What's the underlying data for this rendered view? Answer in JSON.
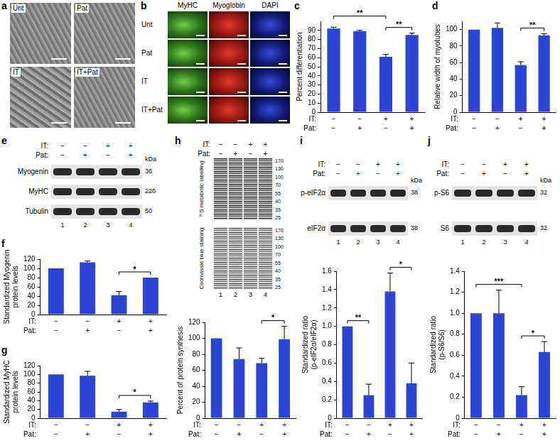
{
  "panel_a": {
    "letter": "a",
    "labels": [
      "Unt",
      "Pat",
      "IT",
      "IT+Pat"
    ]
  },
  "panel_b": {
    "letter": "b",
    "columns": [
      "MyHC",
      "Myoglobin",
      "DAPI"
    ],
    "rows": [
      "Unt",
      "Pat",
      "IT",
      "IT+Pat"
    ]
  },
  "panel_e": {
    "letter": "e",
    "treatments": [
      {
        "name": "IT:",
        "signs": [
          "−",
          "−",
          "+",
          "+"
        ]
      },
      {
        "name": "Pat:",
        "signs": [
          "−",
          "+",
          "−",
          "+"
        ]
      }
    ],
    "unit": "kDa",
    "bands": [
      {
        "name": "Myogenin",
        "kda": 36
      },
      {
        "name": "MyHC",
        "kda": 220
      },
      {
        "name": "Tubulin",
        "kda": 50
      }
    ],
    "lanes": [
      "1",
      "2",
      "3",
      "4"
    ]
  },
  "panel_h": {
    "letter": "h",
    "treatments": [
      {
        "name": "IT:",
        "signs": [
          "−",
          "−",
          "+",
          "+"
        ]
      },
      {
        "name": "Pat:",
        "signs": [
          "−",
          "+",
          "−",
          "+"
        ]
      }
    ],
    "gels": [
      "³⁵S metabolic labelling",
      "Coomassie blue staining"
    ],
    "markers": [
      170,
      130,
      100,
      70,
      55,
      40,
      35,
      25
    ],
    "lanes": [
      "1",
      "2",
      "3",
      "4"
    ]
  },
  "panel_i": {
    "letter": "i",
    "treatments": [
      {
        "name": "IT:",
        "signs": [
          "−",
          "−",
          "+",
          "+"
        ]
      },
      {
        "name": "Pat:",
        "signs": [
          "−",
          "+",
          "−",
          "+"
        ]
      }
    ],
    "unit": "kDa",
    "bands": [
      {
        "name": "p-eIF2α",
        "kda": 38
      },
      {
        "name": "eIF2α",
        "kda": 38
      }
    ],
    "lanes": [
      "1",
      "2",
      "3",
      "4"
    ]
  },
  "panel_j": {
    "letter": "j",
    "treatments": [
      {
        "name": "IT:",
        "signs": [
          "−",
          "−",
          "+",
          "+"
        ]
      },
      {
        "name": "Pat:",
        "signs": [
          "−",
          "+",
          "−",
          "+"
        ]
      }
    ],
    "unit": "kDa",
    "bands": [
      {
        "name": "p-S6",
        "kda": 32
      },
      {
        "name": "S6",
        "kda": 32
      }
    ],
    "lanes": [
      "1",
      "2",
      "3",
      "4"
    ]
  },
  "chart_data": [
    {
      "letter": "c",
      "type": "bar",
      "y_label": "Percent differentiation",
      "condition_labels": [
        "IT:",
        "Pat:"
      ],
      "categories": [
        [
          "−",
          "−"
        ],
        [
          "−",
          "+"
        ],
        [
          "+",
          "−"
        ],
        [
          "+",
          "+"
        ]
      ],
      "values": [
        92,
        89,
        61,
        85
      ],
      "errors": [
        1.5,
        1,
        2.5,
        2
      ],
      "significance": [
        {
          "between": [
            0,
            2
          ],
          "label": "**"
        },
        {
          "between": [
            2,
            3
          ],
          "label": "**"
        }
      ],
      "color": "#2b44d6",
      "ylim": [
        0,
        100
      ],
      "yticks": [
        0,
        10,
        20,
        30,
        40,
        50,
        60,
        70,
        80,
        90
      ],
      "grid": false
    },
    {
      "letter": "d",
      "type": "bar",
      "y_label": "Relative width of myotubes",
      "condition_labels": [
        "IT:",
        "Pat:"
      ],
      "categories": [
        [
          "−",
          "−"
        ],
        [
          "−",
          "+"
        ],
        [
          "+",
          "−"
        ],
        [
          "+",
          "+"
        ]
      ],
      "values": [
        100,
        102,
        57,
        93
      ],
      "errors": [
        0,
        6,
        4,
        2
      ],
      "significance": [
        {
          "between": [
            2,
            3
          ],
          "label": "**"
        }
      ],
      "color": "#2b44d6",
      "ylim": [
        0,
        110
      ],
      "yticks": [
        0,
        20,
        40,
        60,
        80,
        100
      ],
      "grid": false
    },
    {
      "letter": "f",
      "type": "bar",
      "y_label": [
        "Standardized Myogenin",
        "protein levels"
      ],
      "condition_labels": [
        "IT:",
        "Pat:"
      ],
      "categories": [
        [
          "−",
          "−"
        ],
        [
          "−",
          "+"
        ],
        [
          "+",
          "−"
        ],
        [
          "+",
          "+"
        ]
      ],
      "values": [
        100,
        113,
        42,
        80
      ],
      "errors": [
        0,
        3,
        8,
        0
      ],
      "significance": [
        {
          "between": [
            2,
            3
          ],
          "label": "*"
        }
      ],
      "color": "#2b44d6",
      "ylim": [
        0,
        120
      ],
      "yticks": [
        0,
        20,
        40,
        60,
        80,
        100,
        120
      ],
      "grid": false
    },
    {
      "letter": "g",
      "type": "bar",
      "y_label": [
        "Standardized MyHC",
        "protein levels"
      ],
      "condition_labels": [
        "IT:",
        "Pat:"
      ],
      "categories": [
        [
          "−",
          "−"
        ],
        [
          "−",
          "+"
        ],
        [
          "+",
          "−"
        ],
        [
          "+",
          "+"
        ]
      ],
      "values": [
        100,
        97,
        15,
        36
      ],
      "errors": [
        0,
        10,
        5,
        3
      ],
      "significance": [
        {
          "between": [
            2,
            3
          ],
          "label": "*"
        }
      ],
      "color": "#2b44d6",
      "ylim": [
        0,
        120
      ],
      "yticks": [
        0,
        20,
        40,
        60,
        80,
        100,
        120
      ],
      "grid": false
    },
    {
      "type": "bar",
      "y_label": "Percent of protein synthesis",
      "condition_labels": [
        "IT:",
        "Pat:"
      ],
      "categories": [
        [
          "−",
          "−"
        ],
        [
          "−",
          "+"
        ],
        [
          "+",
          "−"
        ],
        [
          "+",
          "+"
        ]
      ],
      "values": [
        100,
        74,
        69,
        99
      ],
      "errors": [
        0,
        14,
        6,
        16
      ],
      "significance": [
        {
          "between": [
            2,
            3
          ],
          "label": "*"
        }
      ],
      "color": "#2b44d6",
      "ylim": [
        0,
        120
      ],
      "yticks": [
        0,
        20,
        40,
        60,
        80,
        100,
        120
      ],
      "grid": false
    },
    {
      "type": "bar",
      "y_label": [
        "Standardized ratio",
        "(p-eIF2α/eIF2α)"
      ],
      "condition_labels": [
        "IT:",
        "Pat:"
      ],
      "categories": [
        [
          "−",
          "−"
        ],
        [
          "−",
          "+"
        ],
        [
          "+",
          "−"
        ],
        [
          "+",
          "+"
        ]
      ],
      "values": [
        1.0,
        0.25,
        1.38,
        0.38
      ],
      "errors": [
        0,
        0.12,
        0.2,
        0.22
      ],
      "significance": [
        {
          "between": [
            0,
            1
          ],
          "label": "**"
        },
        {
          "between": [
            2,
            3
          ],
          "label": "*"
        }
      ],
      "color": "#2b44d6",
      "ylim": [
        0,
        1.6
      ],
      "yticks": [
        0,
        0.2,
        0.4,
        0.6,
        0.8,
        {
          "value": 1,
          "label": "1.0"
        },
        1.2,
        1.4,
        1.6
      ],
      "grid": false
    },
    {
      "type": "bar",
      "y_label": [
        "Standardized ratio",
        "(p-S6/S6)"
      ],
      "condition_labels": [
        "IT:",
        "Pat:"
      ],
      "categories": [
        [
          "−",
          "−"
        ],
        [
          "−",
          "+"
        ],
        [
          "+",
          "−"
        ],
        [
          "+",
          "+"
        ]
      ],
      "values": [
        1.0,
        1.0,
        0.22,
        0.63
      ],
      "errors": [
        0,
        0.22,
        0.08,
        0.1
      ],
      "significance": [
        {
          "between": [
            0,
            2
          ],
          "label": "***"
        },
        {
          "between": [
            2,
            3
          ],
          "label": "*"
        }
      ],
      "color": "#2b44d6",
      "ylim": [
        0,
        1.4
      ],
      "yticks": [
        0,
        0.2,
        0.4,
        0.6,
        0.8,
        {
          "value": 1,
          "label": "1.0"
        },
        1.2,
        1.4
      ],
      "grid": false
    }
  ]
}
